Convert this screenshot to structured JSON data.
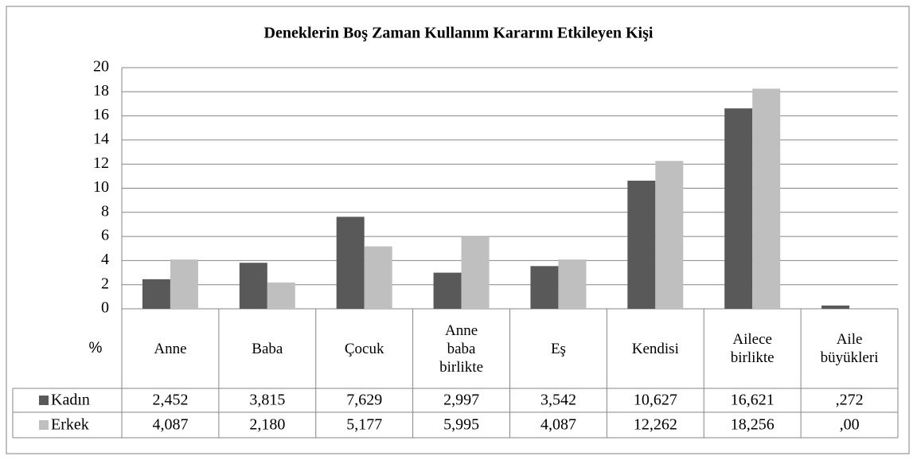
{
  "chart_data": {
    "type": "bar",
    "title": "Deneklerin Boş Zaman Kullanım Kararını Etkileyen Kişi",
    "categories": [
      "Anne",
      "Baba",
      "Çocuk",
      "Anne baba birlikte",
      "Eş",
      "Kendisi",
      "Ailece birlikte",
      "Aile büyükleri"
    ],
    "table_header": "%",
    "series": [
      {
        "name": "Kadın",
        "color": "#595959",
        "values": [
          2.452,
          3.815,
          7.629,
          2.997,
          3.542,
          10.627,
          16.621,
          0.272
        ],
        "value_labels": [
          "2,452",
          "3,815",
          "7,629",
          "2,997",
          "3,542",
          "10,627",
          "16,621",
          ",272"
        ]
      },
      {
        "name": "Erkek",
        "color": "#bfbfbf",
        "values": [
          4.087,
          2.18,
          5.177,
          5.995,
          4.087,
          12.262,
          18.256,
          0
        ],
        "value_labels": [
          "4,087",
          "2,180",
          "5,177",
          "5,995",
          "4,087",
          "12,262",
          "18,256",
          ",00"
        ]
      }
    ],
    "ylim": [
      0,
      20
    ],
    "yticks": [
      0,
      2,
      4,
      6,
      8,
      10,
      12,
      14,
      16,
      18,
      20
    ],
    "grid": true
  }
}
